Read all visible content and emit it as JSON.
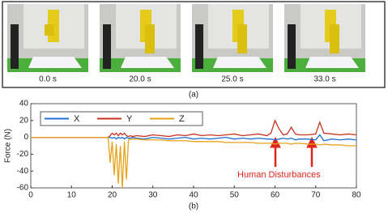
{
  "panel_a": {
    "captions": [
      "0.0 s",
      "20.0 s",
      "25.0 s",
      "33.0 s"
    ],
    "label": "(a)"
  },
  "panel_b_label": "(b)",
  "chart_data": {
    "type": "line",
    "ylabel": "Force (N)",
    "annotation": "Human Disturbances",
    "x": [
      0,
      2,
      4,
      6,
      8,
      10,
      12,
      14,
      16,
      18,
      19,
      19.5,
      20,
      20.5,
      21,
      21.5,
      22,
      22.5,
      23,
      23.5,
      24,
      24.5,
      25,
      26,
      28,
      30,
      32,
      34,
      36,
      38,
      40,
      42,
      44,
      46,
      48,
      50,
      52,
      54,
      56,
      58,
      59,
      60,
      61,
      62,
      63,
      64,
      65,
      66,
      68,
      70,
      71,
      72,
      74,
      76,
      78,
      80
    ],
    "series": [
      {
        "name": "X",
        "color": "#1f6fd0",
        "values": [
          0,
          0,
          0,
          0,
          0,
          0,
          0,
          0,
          0,
          0,
          0,
          0,
          -1,
          0,
          -2,
          0,
          -1,
          0,
          -2,
          0,
          -1,
          -1,
          0,
          -1,
          -2,
          0,
          -1,
          -2,
          -1,
          0,
          -2,
          -1,
          -2,
          -1,
          0,
          -2,
          -1,
          -2,
          -1,
          -2,
          -2,
          -3,
          -2,
          -1,
          -2,
          -1,
          -3,
          -2,
          -2,
          -3,
          3,
          -4,
          -2,
          -3,
          -2,
          -3
        ]
      },
      {
        "name": "Y",
        "color": "#c8321e",
        "values": [
          0,
          0,
          0,
          0,
          0,
          0,
          0,
          0,
          0,
          0,
          0,
          2,
          5,
          3,
          5,
          2,
          5,
          3,
          5,
          2,
          1,
          2,
          1,
          2,
          1,
          3,
          2,
          1,
          3,
          2,
          4,
          2,
          3,
          2,
          3,
          4,
          2,
          3,
          4,
          2,
          5,
          20,
          10,
          3,
          4,
          12,
          4,
          3,
          3,
          4,
          18,
          5,
          4,
          3,
          4,
          3
        ]
      },
      {
        "name": "Z",
        "color": "#e6a21a",
        "values": [
          0,
          0,
          0,
          0,
          0,
          0,
          0,
          0,
          0,
          0,
          0,
          -30,
          -5,
          -45,
          -8,
          -55,
          -10,
          -60,
          -5,
          -50,
          -3,
          -2,
          -2,
          -2,
          -3,
          -3,
          -3,
          -4,
          -4,
          -4,
          -5,
          -5,
          -5,
          -5,
          -6,
          -6,
          -6,
          -6,
          -7,
          -7,
          -7,
          -8,
          -7,
          -7,
          -7,
          -8,
          -7,
          -7,
          -8,
          -8,
          -9,
          -8,
          -9,
          -9,
          -10,
          -10
        ]
      }
    ],
    "xlim": [
      0,
      80
    ],
    "xticks": [
      0,
      10,
      20,
      30,
      40,
      50,
      60,
      70,
      80
    ],
    "ylim": [
      -60,
      40
    ],
    "yticks": [
      -60,
      -40,
      -20,
      0,
      20,
      40
    ]
  }
}
